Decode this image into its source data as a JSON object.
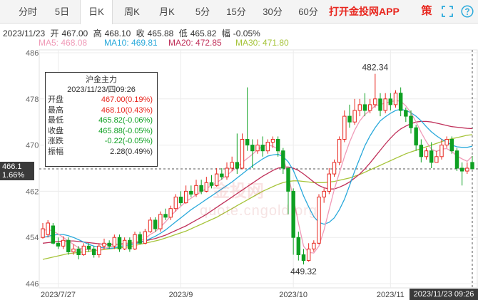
{
  "tabs": [
    {
      "label": "分时",
      "active": false
    },
    {
      "label": "5日",
      "active": false
    },
    {
      "label": "日K",
      "active": true
    },
    {
      "label": "周K",
      "active": false
    },
    {
      "label": "月K",
      "active": false
    },
    {
      "label": "5分",
      "active": false
    },
    {
      "label": "15分",
      "active": false
    },
    {
      "label": "30分",
      "active": false
    },
    {
      "label": "60分",
      "active": false
    }
  ],
  "app_link": "打开金投网APP",
  "strategy_label": "策",
  "quote": {
    "date": "2023/11/23",
    "open_label": "开",
    "open": "467.00",
    "high_label": "高",
    "high": "468.10",
    "close_label": "收",
    "close": "465.88",
    "low_label": "低",
    "low": "465.82",
    "change_label": "幅",
    "change": "-0.05%"
  },
  "ma": {
    "ma5": "MA5: 468.08",
    "ma10": "MA10: 469.81",
    "ma20": "MA20: 472.85",
    "ma30": "MA30: 471.80"
  },
  "colors": {
    "up": "#e8271f",
    "down": "#0ea022",
    "ma5": "#f09bb8",
    "ma10": "#29a9db",
    "ma20": "#c0305a",
    "ma30": "#a6c43a"
  },
  "tooltip": {
    "title": "沪金主力",
    "datetime": "2023/11/23/四09:26",
    "rows": [
      {
        "label": "开盘",
        "value": "467.00(0.19%)",
        "tone": "red"
      },
      {
        "label": "最高",
        "value": "468.10(0.43%)",
        "tone": "red"
      },
      {
        "label": "最低",
        "value": "465.82(-0.06%)",
        "tone": "green"
      },
      {
        "label": "收盘",
        "value": "465.88(-0.05%)",
        "tone": "green"
      },
      {
        "label": "涨跌",
        "value": "-0.22(-0.05%)",
        "tone": "green"
      },
      {
        "label": "振幅",
        "value": "2.28(0.49%)",
        "tone": "dark"
      }
    ]
  },
  "price_tag": {
    "price": "466.1",
    "percent": "1.66%"
  },
  "time_tag": "2023/11/23 09:26",
  "watermark": {
    "logo": "金投网",
    "url": "quote.cngold.org"
  },
  "chart_data": {
    "type": "candlestick",
    "y_ticks": [
      "486",
      "478",
      "470",
      "462",
      "454",
      "446"
    ],
    "ylim": [
      446,
      486
    ],
    "x_ticks": [
      "2023/7/27",
      "2023/9",
      "2023/10",
      "2023/11"
    ],
    "annotations": {
      "high": "482.34",
      "low": "449.32"
    },
    "candles": [
      [
        454,
        455.5,
        453.8,
        456.5
      ],
      [
        454.5,
        456.5,
        454,
        457
      ],
      [
        456,
        453,
        452.8,
        456.5
      ],
      [
        453,
        452.5,
        452,
        454
      ],
      [
        452.5,
        453.5,
        452,
        454.2
      ],
      [
        453.5,
        451.5,
        451,
        454
      ],
      [
        451.5,
        452,
        451,
        452.8
      ],
      [
        452,
        451,
        450.2,
        452.5
      ],
      [
        451,
        452.5,
        450.8,
        453
      ],
      [
        452.5,
        452,
        451.5,
        453
      ],
      [
        452,
        451,
        450.5,
        452.5
      ],
      [
        451,
        452.5,
        450.5,
        453
      ],
      [
        452.5,
        453,
        452,
        453.8
      ],
      [
        453,
        452.5,
        452,
        453.5
      ],
      [
        452.5,
        454,
        452,
        454.5
      ],
      [
        454,
        452,
        451.5,
        454.5
      ],
      [
        452,
        453.5,
        451.8,
        454
      ],
      [
        453.5,
        452,
        451.5,
        454
      ],
      [
        452,
        454.5,
        451.8,
        455
      ],
      [
        454.5,
        453,
        452.8,
        455
      ],
      [
        453,
        455,
        452.8,
        455.5
      ],
      [
        455,
        457,
        454.8,
        457.5
      ],
      [
        457,
        455.5,
        455,
        457.5
      ],
      [
        455.5,
        458,
        455,
        458.5
      ],
      [
        458,
        457.5,
        457,
        459
      ],
      [
        457.5,
        459,
        457,
        459.5
      ],
      [
        459,
        461,
        458.5,
        461.5
      ],
      [
        461,
        460,
        459.5,
        462
      ],
      [
        460,
        462,
        459.8,
        463
      ],
      [
        462,
        461.5,
        461,
        463
      ],
      [
        461.5,
        463,
        461,
        464
      ],
      [
        463,
        462,
        461.5,
        464
      ],
      [
        462,
        463.5,
        461.8,
        464.5
      ],
      [
        463.5,
        463,
        462.5,
        464.8
      ],
      [
        463,
        465,
        462.8,
        466
      ],
      [
        465,
        464.5,
        464,
        466
      ],
      [
        464.5,
        466,
        464,
        467
      ],
      [
        466,
        467,
        465.5,
        468
      ],
      [
        467,
        466,
        465,
        472
      ],
      [
        466,
        471,
        465.8,
        472
      ],
      [
        471,
        470,
        469,
        480
      ],
      [
        470,
        469,
        466,
        471
      ],
      [
        469,
        470,
        468.5,
        471
      ],
      [
        470,
        469,
        468,
        471.5
      ],
      [
        469,
        470.5,
        468.5,
        471
      ],
      [
        470.5,
        471,
        469.5,
        471.5
      ],
      [
        471,
        469,
        468,
        471.5
      ],
      [
        469,
        466,
        465,
        469.5
      ],
      [
        466,
        462,
        458,
        466
      ],
      [
        462,
        454,
        451,
        462.5
      ],
      [
        454,
        451,
        450,
        455
      ],
      [
        451,
        450,
        449.32,
        452
      ],
      [
        450,
        452,
        449.8,
        453
      ],
      [
        452,
        453,
        451.5,
        453.5
      ],
      [
        453,
        461,
        452.8,
        461.5
      ],
      [
        461,
        462,
        460,
        462.5
      ],
      [
        462,
        465,
        461.5,
        466
      ],
      [
        465,
        467,
        464.5,
        467.5
      ],
      [
        467,
        471,
        466.5,
        471.5
      ],
      [
        471,
        475,
        470.5,
        476
      ],
      [
        475,
        474,
        473,
        477
      ],
      [
        474,
        476,
        473.5,
        478
      ],
      [
        476,
        477,
        475,
        478
      ],
      [
        477,
        476,
        475,
        479
      ],
      [
        476,
        477,
        475.5,
        478
      ],
      [
        477,
        478,
        476.5,
        482.34
      ],
      [
        478,
        476,
        475,
        479
      ],
      [
        476,
        478,
        475.5,
        479
      ],
      [
        478,
        477,
        476,
        479
      ],
      [
        477,
        479,
        476.5,
        479.5
      ],
      [
        479,
        476,
        475,
        480
      ],
      [
        476,
        475,
        474,
        476.5
      ],
      [
        475,
        473,
        472,
        476
      ],
      [
        473,
        470,
        469,
        473.5
      ],
      [
        470,
        468,
        467,
        471
      ],
      [
        468,
        469,
        467.5,
        469.5
      ],
      [
        469,
        467,
        466,
        470.5
      ],
      [
        467,
        468,
        467,
        469
      ],
      [
        468,
        470,
        467.5,
        471
      ],
      [
        470,
        471,
        469.5,
        471.5
      ],
      [
        471,
        469,
        468.5,
        471.5
      ],
      [
        469,
        466,
        465.5,
        469.5
      ],
      [
        466,
        465.5,
        463,
        467
      ],
      [
        465.5,
        466,
        465,
        467
      ],
      [
        467,
        465.88,
        465.82,
        468.1
      ]
    ],
    "ma5": [
      455.2,
      455.4,
      455.1,
      454.6,
      454.0,
      453.4,
      452.8,
      452.2,
      451.9,
      451.9,
      451.8,
      451.8,
      452.1,
      452.3,
      452.6,
      452.9,
      453.0,
      453.0,
      453.2,
      453.4,
      453.8,
      454.5,
      455.0,
      455.8,
      456.7,
      457.7,
      458.6,
      459.4,
      460.2,
      460.8,
      461.4,
      461.9,
      462.5,
      463.0,
      463.5,
      464.1,
      464.8,
      465.5,
      466.2,
      467.0,
      467.7,
      468.4,
      469.2,
      469.8,
      470.0,
      469.8,
      469.3,
      467.8,
      464.8,
      460.8,
      456.5,
      452.5,
      451.4,
      451.3,
      452.5,
      455.3,
      458.8,
      462.3,
      465.2,
      468.0,
      470.5,
      472.6,
      474.2,
      475.3,
      476.0,
      476.8,
      477.0,
      477.3,
      477.5,
      477.7,
      477.6,
      476.8,
      475.6,
      474.0,
      472.2,
      470.6,
      469.3,
      468.9,
      469.3,
      469.4,
      468.9,
      468.1,
      467.6,
      467.2,
      468.08
    ],
    "ma10": [
      454.0,
      454.2,
      454.4,
      454.5,
      454.5,
      454.3,
      454.0,
      453.6,
      453.2,
      452.8,
      452.5,
      452.3,
      452.2,
      452.1,
      452.2,
      452.4,
      452.6,
      452.7,
      452.9,
      453.1,
      453.4,
      453.8,
      454.2,
      454.7,
      455.3,
      456.0,
      456.7,
      457.4,
      458.1,
      458.8,
      459.4,
      460.0,
      460.6,
      461.2,
      461.8,
      462.4,
      463.0,
      463.6,
      464.3,
      465.0,
      465.7,
      466.4,
      467.0,
      467.6,
      468.1,
      468.3,
      468.4,
      468.0,
      467.1,
      465.6,
      463.5,
      461.2,
      459.3,
      457.6,
      456.6,
      456.3,
      456.6,
      457.4,
      458.8,
      460.6,
      463.0,
      465.5,
      467.7,
      469.9,
      471.6,
      473.0,
      474.2,
      474.9,
      475.5,
      476.0,
      476.2,
      476.0,
      475.6,
      475.0,
      474.2,
      473.2,
      472.3,
      471.6,
      471.0,
      470.5,
      470.0,
      469.7,
      469.6,
      469.6,
      469.81
    ],
    "ma20": [
      453.0,
      453.1,
      453.2,
      453.3,
      453.4,
      453.4,
      453.4,
      453.3,
      453.2,
      453.1,
      453.0,
      452.9,
      452.8,
      452.8,
      452.8,
      452.8,
      452.9,
      453.0,
      453.1,
      453.2,
      453.4,
      453.6,
      453.8,
      454.1,
      454.4,
      454.8,
      455.2,
      455.6,
      456.0,
      456.5,
      457.0,
      457.5,
      458.0,
      458.6,
      459.2,
      459.8,
      460.4,
      461.0,
      461.6,
      462.2,
      462.8,
      463.4,
      464.0,
      464.6,
      465.1,
      465.6,
      466.0,
      466.2,
      466.2,
      466.0,
      465.6,
      465.0,
      464.3,
      463.6,
      463.0,
      462.6,
      462.4,
      462.4,
      462.7,
      463.1,
      463.6,
      464.3,
      465.0,
      465.9,
      466.9,
      468.0,
      469.1,
      470.2,
      471.2,
      472.1,
      472.8,
      473.3,
      473.7,
      474.0,
      474.1,
      474.1,
      474.0,
      473.8,
      473.6,
      473.4,
      473.2,
      473.1,
      473.0,
      472.9,
      472.85
    ],
    "ma30": [
      450.2,
      450.4,
      450.6,
      450.8,
      451.0,
      451.2,
      451.3,
      451.4,
      451.5,
      451.6,
      451.7,
      451.8,
      451.9,
      452.0,
      452.1,
      452.2,
      452.3,
      452.4,
      452.6,
      452.8,
      453.0,
      453.2,
      453.4,
      453.6,
      453.9,
      454.2,
      454.5,
      454.8,
      455.1,
      455.5,
      455.9,
      456.3,
      456.7,
      457.1,
      457.5,
      458.0,
      458.5,
      459.0,
      459.5,
      460.0,
      460.5,
      461.0,
      461.5,
      462.0,
      462.4,
      462.8,
      463.2,
      463.5,
      463.7,
      463.8,
      463.8,
      463.7,
      463.6,
      463.5,
      463.5,
      463.5,
      463.6,
      463.7,
      463.9,
      464.1,
      464.3,
      464.6,
      464.9,
      465.3,
      465.7,
      466.1,
      466.5,
      466.9,
      467.3,
      467.7,
      468.1,
      468.5,
      468.8,
      469.1,
      469.4,
      469.7,
      470.0,
      470.3,
      470.6,
      470.9,
      471.1,
      471.3,
      471.5,
      471.7,
      471.8
    ]
  }
}
